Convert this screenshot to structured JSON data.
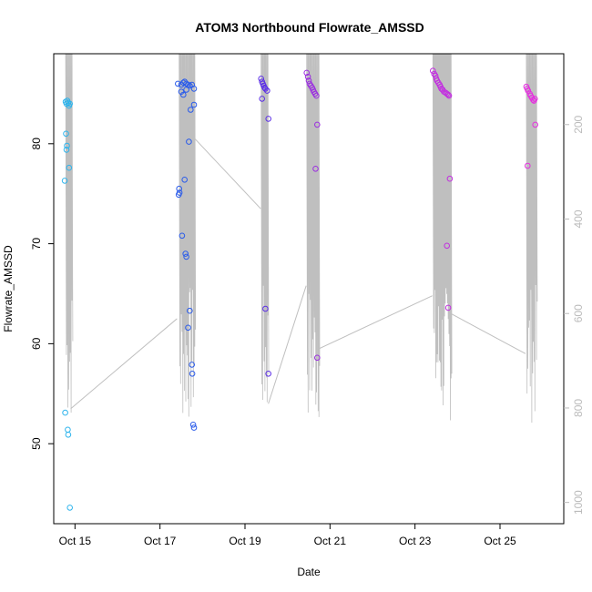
{
  "chart_data": {
    "type": "scatter",
    "title": "ATOM3 Northbound Flowrate_AMSSD",
    "xlabel": "Date",
    "ylabel": "Flowrate_AMSSD",
    "xlim": [
      14.5,
      26.5
    ],
    "ylim": [
      42,
      89
    ],
    "x_ticks": [
      {
        "value": 15,
        "label": "Oct 15"
      },
      {
        "value": 17,
        "label": "Oct 17"
      },
      {
        "value": 19,
        "label": "Oct 19"
      },
      {
        "value": 21,
        "label": "Oct 21"
      },
      {
        "value": 23,
        "label": "Oct 23"
      },
      {
        "value": 25,
        "label": "Oct 25"
      }
    ],
    "y_ticks": [
      {
        "value": 50,
        "label": "50"
      },
      {
        "value": 60,
        "label": "60"
      },
      {
        "value": 70,
        "label": "70"
      },
      {
        "value": 80,
        "label": "80"
      }
    ],
    "y2lim": [
      1045,
      50
    ],
    "y2_ticks": [
      {
        "value": 200,
        "label": "200"
      },
      {
        "value": 400,
        "label": "400"
      },
      {
        "value": 600,
        "label": "600"
      },
      {
        "value": 800,
        "label": "800"
      },
      {
        "value": 1000,
        "label": "1000"
      }
    ],
    "line_color": "#bfbfbf",
    "series": [
      {
        "color": "#2eb4ec",
        "points": [
          [
            14.78,
            84.2
          ],
          [
            14.8,
            84.0
          ],
          [
            14.82,
            84.3
          ],
          [
            14.84,
            84.1
          ],
          [
            14.86,
            83.8
          ],
          [
            14.88,
            84.0
          ],
          [
            14.79,
            81.0
          ],
          [
            14.81,
            79.8
          ],
          [
            14.8,
            79.4
          ],
          [
            14.86,
            77.6
          ],
          [
            14.76,
            76.3
          ],
          [
            14.77,
            53.1
          ],
          [
            14.83,
            51.4
          ],
          [
            14.84,
            50.9
          ],
          [
            14.88,
            43.6
          ]
        ]
      },
      {
        "color": "#2a5bea",
        "points": [
          [
            17.42,
            86.0
          ],
          [
            17.5,
            85.9
          ],
          [
            17.55,
            86.1
          ],
          [
            17.58,
            86.2
          ],
          [
            17.62,
            86.0
          ],
          [
            17.66,
            85.9
          ],
          [
            17.7,
            85.8
          ],
          [
            17.75,
            85.9
          ],
          [
            17.8,
            85.5
          ],
          [
            17.5,
            85.2
          ],
          [
            17.55,
            84.9
          ],
          [
            17.62,
            85.4
          ],
          [
            17.72,
            83.4
          ],
          [
            17.8,
            83.9
          ],
          [
            17.68,
            80.2
          ],
          [
            17.58,
            76.4
          ],
          [
            17.45,
            75.5
          ],
          [
            17.46,
            75.1
          ],
          [
            17.44,
            74.9
          ],
          [
            17.52,
            70.8
          ],
          [
            17.6,
            69.0
          ],
          [
            17.62,
            68.7
          ],
          [
            17.7,
            63.3
          ],
          [
            17.66,
            61.6
          ],
          [
            17.75,
            57.9
          ],
          [
            17.76,
            57.0
          ],
          [
            17.78,
            51.9
          ],
          [
            17.8,
            51.6
          ]
        ]
      },
      {
        "color": "#5b2ee6",
        "points": [
          [
            19.38,
            86.5
          ],
          [
            19.4,
            86.2
          ],
          [
            19.42,
            86.0
          ],
          [
            19.44,
            85.8
          ],
          [
            19.46,
            85.6
          ],
          [
            19.48,
            85.5
          ],
          [
            19.52,
            85.3
          ],
          [
            19.4,
            84.5
          ],
          [
            19.55,
            82.5
          ],
          [
            19.48,
            63.5
          ],
          [
            19.55,
            57.0
          ]
        ]
      },
      {
        "color": "#9b2ee0",
        "points": [
          [
            20.45,
            87.1
          ],
          [
            20.48,
            86.7
          ],
          [
            20.5,
            86.3
          ],
          [
            20.52,
            86.0
          ],
          [
            20.55,
            85.8
          ],
          [
            20.58,
            85.6
          ],
          [
            20.6,
            85.4
          ],
          [
            20.62,
            85.2
          ],
          [
            20.65,
            85.0
          ],
          [
            20.68,
            84.8
          ],
          [
            20.7,
            81.9
          ],
          [
            20.66,
            77.5
          ],
          [
            20.7,
            58.6
          ]
        ]
      },
      {
        "color": "#c22ee0",
        "points": [
          [
            23.42,
            87.3
          ],
          [
            23.45,
            87.0
          ],
          [
            23.48,
            86.8
          ],
          [
            23.5,
            86.5
          ],
          [
            23.52,
            86.3
          ],
          [
            23.55,
            86.1
          ],
          [
            23.58,
            85.9
          ],
          [
            23.6,
            85.7
          ],
          [
            23.62,
            85.5
          ],
          [
            23.65,
            85.4
          ],
          [
            23.68,
            85.2
          ],
          [
            23.72,
            85.1
          ],
          [
            23.75,
            85.0
          ],
          [
            23.78,
            84.9
          ],
          [
            23.8,
            84.8
          ],
          [
            23.82,
            76.5
          ],
          [
            23.75,
            69.8
          ],
          [
            23.78,
            63.6
          ]
        ]
      },
      {
        "color": "#e62ee0",
        "points": [
          [
            25.62,
            85.7
          ],
          [
            25.64,
            85.5
          ],
          [
            25.66,
            85.3
          ],
          [
            25.7,
            85.0
          ],
          [
            25.72,
            84.8
          ],
          [
            25.75,
            84.6
          ],
          [
            25.78,
            84.4
          ],
          [
            25.8,
            84.3
          ],
          [
            25.82,
            84.5
          ],
          [
            25.83,
            81.9
          ],
          [
            25.65,
            77.8
          ]
        ]
      }
    ],
    "spikes": [
      [
        14.78,
        14.93
      ],
      [
        17.45,
        17.82
      ],
      [
        19.38,
        19.54
      ],
      [
        20.45,
        20.74
      ],
      [
        23.42,
        23.85
      ],
      [
        25.62,
        25.86
      ]
    ],
    "connectors": [
      [
        [
          14.9,
          53.5
        ],
        [
          17.4,
          62.5
        ]
      ],
      [
        [
          17.82,
          80.5
        ],
        [
          19.37,
          73.5
        ]
      ],
      [
        [
          19.55,
          54.0
        ],
        [
          20.44,
          65.8
        ]
      ],
      [
        [
          20.74,
          59.5
        ],
        [
          23.41,
          64.8
        ]
      ],
      [
        [
          23.85,
          63.0
        ],
        [
          25.6,
          59.0
        ]
      ]
    ],
    "grid": false
  }
}
